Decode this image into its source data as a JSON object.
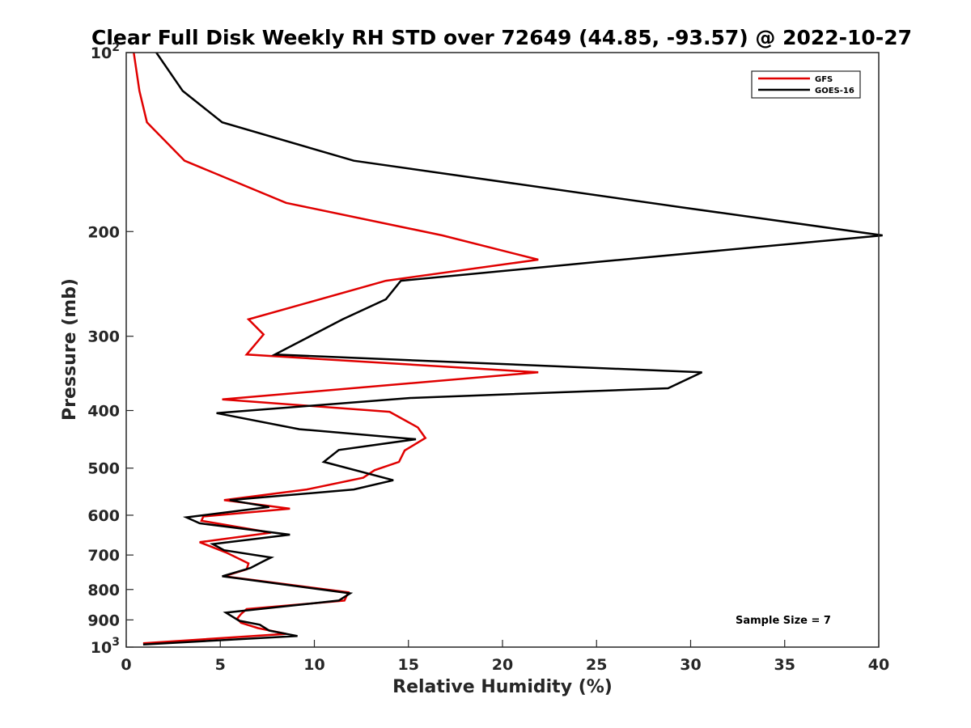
{
  "chart_data": {
    "type": "line",
    "title": "Clear Full Disk Weekly RH STD over 72649 (44.85, -93.57) @ 2022-10-27",
    "xlabel": "Relative Humidity (%)",
    "ylabel": "Pressure (mb)",
    "xlim": [
      0,
      40
    ],
    "ylim": [
      100,
      1000
    ],
    "y_scale": "log",
    "y_reversed": true,
    "x_ticks": [
      {
        "value": 0,
        "label": "0"
      },
      {
        "value": 5,
        "label": "5"
      },
      {
        "value": 10,
        "label": "10"
      },
      {
        "value": 15,
        "label": "15"
      },
      {
        "value": 20,
        "label": "20"
      },
      {
        "value": 25,
        "label": "25"
      },
      {
        "value": 30,
        "label": "30"
      },
      {
        "value": 35,
        "label": "35"
      },
      {
        "value": 40,
        "label": "40"
      }
    ],
    "y_ticks": [
      {
        "value": 100,
        "label": "10",
        "exp": "2"
      },
      {
        "value": 200,
        "label": "200"
      },
      {
        "value": 300,
        "label": "300"
      },
      {
        "value": 400,
        "label": "400"
      },
      {
        "value": 500,
        "label": "500"
      },
      {
        "value": 600,
        "label": "600"
      },
      {
        "value": 700,
        "label": "700"
      },
      {
        "value": 800,
        "label": "800"
      },
      {
        "value": 900,
        "label": "900"
      },
      {
        "value": 1000,
        "label": "10",
        "exp": "3"
      }
    ],
    "legend_position": "top-right",
    "annotation": "Sample Size = 7",
    "series": [
      {
        "name": "GFS",
        "color": "#e00000",
        "points": [
          [
            0.4,
            100
          ],
          [
            0.7,
            116
          ],
          [
            1.1,
            131
          ],
          [
            3.1,
            152
          ],
          [
            8.5,
            179
          ],
          [
            16.8,
            203
          ],
          [
            21.9,
            223
          ],
          [
            13.8,
            242
          ],
          [
            6.5,
            281
          ],
          [
            7.3,
            298
          ],
          [
            6.4,
            322
          ],
          [
            21.9,
            345
          ],
          [
            5.1,
            383
          ],
          [
            14.0,
            402
          ],
          [
            15.5,
            427
          ],
          [
            15.9,
            445
          ],
          [
            14.8,
            467
          ],
          [
            14.5,
            488
          ],
          [
            13.2,
            504
          ],
          [
            12.6,
            519
          ],
          [
            9.6,
            543
          ],
          [
            5.2,
            566
          ],
          [
            8.7,
            585
          ],
          [
            4.1,
            603
          ],
          [
            4.0,
            613
          ],
          [
            7.7,
            642
          ],
          [
            3.9,
            666
          ],
          [
            5.3,
            693
          ],
          [
            6.5,
            723
          ],
          [
            6.4,
            740
          ],
          [
            5.2,
            760
          ],
          [
            11.8,
            809
          ],
          [
            11.6,
            835
          ],
          [
            6.4,
            863
          ],
          [
            6.1,
            880
          ],
          [
            5.9,
            895
          ],
          [
            6.1,
            910
          ],
          [
            7.0,
            929
          ],
          [
            8.5,
            950
          ],
          [
            0.9,
            985
          ]
        ]
      },
      {
        "name": "GOES-16",
        "color": "#000000",
        "points": [
          [
            1.6,
            100
          ],
          [
            3.0,
            116
          ],
          [
            5.1,
            131
          ],
          [
            12.1,
            152
          ],
          [
            29.5,
            182
          ],
          [
            40.2,
            203
          ],
          [
            25.0,
            225
          ],
          [
            14.6,
            242
          ],
          [
            13.8,
            260
          ],
          [
            11.5,
            281
          ],
          [
            7.9,
            322
          ],
          [
            30.6,
            345
          ],
          [
            28.8,
            367
          ],
          [
            15.1,
            381
          ],
          [
            4.8,
            404
          ],
          [
            9.2,
            430
          ],
          [
            15.4,
            447
          ],
          [
            11.3,
            466
          ],
          [
            10.5,
            488
          ],
          [
            14.2,
            524
          ],
          [
            12.1,
            543
          ],
          [
            5.5,
            566
          ],
          [
            7.6,
            581
          ],
          [
            3.2,
            605
          ],
          [
            3.9,
            619
          ],
          [
            8.7,
            647
          ],
          [
            4.6,
            671
          ],
          [
            5.2,
            687
          ],
          [
            7.7,
            707
          ],
          [
            7.3,
            717
          ],
          [
            6.6,
            736
          ],
          [
            5.1,
            760
          ],
          [
            11.9,
            812
          ],
          [
            11.3,
            835
          ],
          [
            5.3,
            875
          ],
          [
            6.0,
            903
          ],
          [
            7.1,
            917
          ],
          [
            7.6,
            938
          ],
          [
            9.1,
            958
          ],
          [
            0.9,
            990
          ]
        ]
      }
    ]
  }
}
